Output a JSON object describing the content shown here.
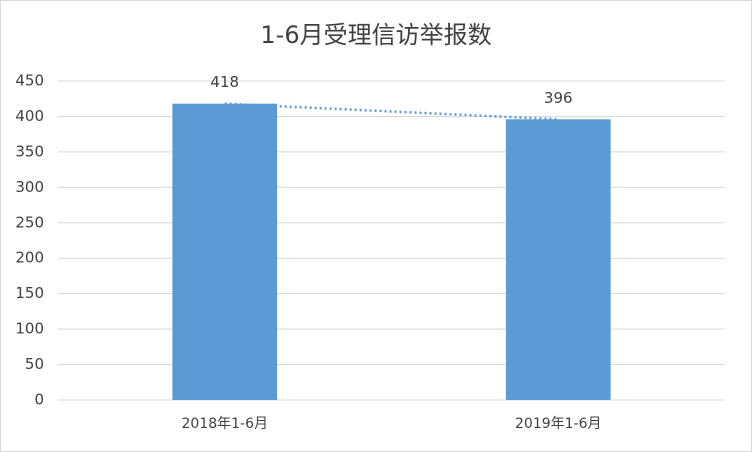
{
  "chart_data": {
    "type": "bar",
    "title": "1-6月受理信访举报数",
    "categories": [
      "2018年1-6月",
      "2019年1-6月"
    ],
    "values": [
      418,
      396
    ],
    "color": "#5b9bd5",
    "ylim": [
      0,
      450
    ],
    "yticks": [
      0,
      50,
      100,
      150,
      200,
      250,
      300,
      350,
      400,
      450
    ],
    "grid": true
  }
}
